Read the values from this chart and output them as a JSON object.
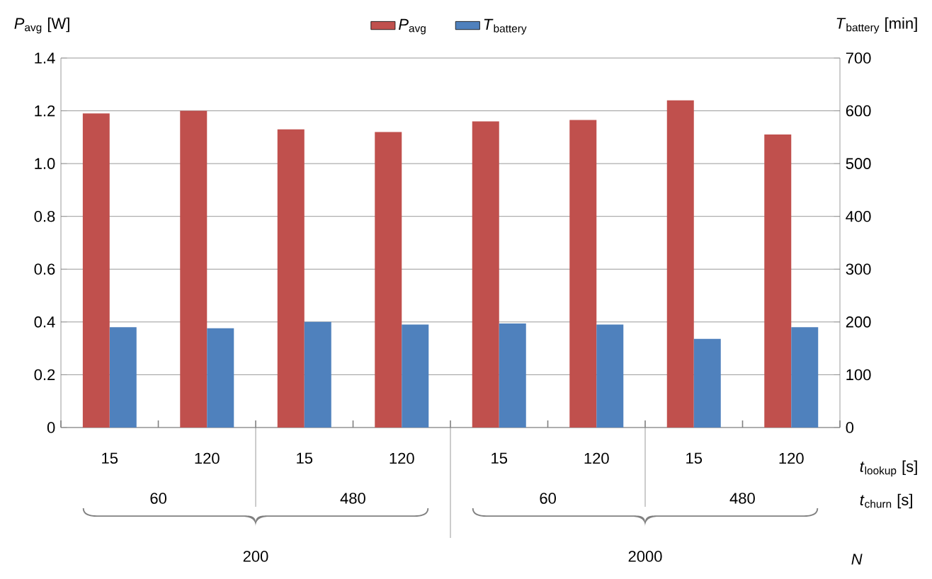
{
  "chart_data": {
    "type": "bar",
    "categories": [
      "15",
      "120",
      "15",
      "120",
      "15",
      "120",
      "15",
      "120"
    ],
    "series": [
      {
        "name": "*P*$_{avg}$",
        "color": "#c0504d",
        "values": [
          1.19,
          1.2,
          1.13,
          1.12,
          1.16,
          1.165,
          1.24,
          1.11
        ]
      },
      {
        "name": "*T*$_{battery}$",
        "color": "#4f81bd",
        "axis": "y2",
        "values": [
          190,
          188,
          200,
          195,
          197,
          195,
          168,
          190
        ]
      }
    ],
    "xlabel": "*t*$_{lookup}$ [s]",
    "ylabel": "*P*$_{avg}$ [W]",
    "y2label": "*T*$_{battery}$ [min]",
    "annotations": [
      "60",
      "480",
      "60",
      "480",
      "200",
      "2000",
      "*t*$_{churn}$ [s]",
      "*N*"
    ],
    "ylim": [
      0,
      1.4
    ],
    "yticks": [
      0,
      0.2,
      0.4,
      0.6,
      0.8,
      {
        "value": 1,
        "label": "1.0"
      },
      1.2,
      1.4
    ],
    "y2lim": [
      0,
      700
    ],
    "y2ticks": [
      0,
      100,
      200,
      300,
      400,
      500,
      600,
      700
    ],
    "grid": "y",
    "legend": "top"
  }
}
